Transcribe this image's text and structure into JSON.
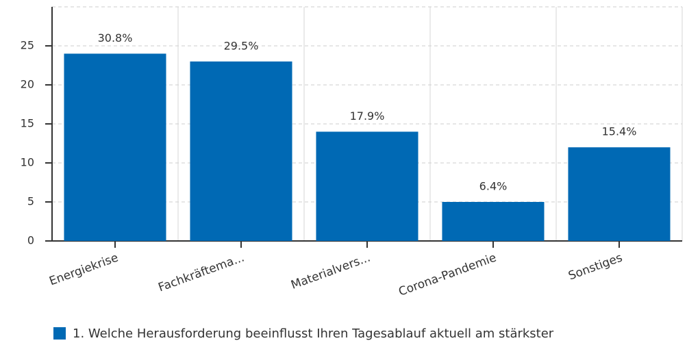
{
  "chart_data": {
    "type": "bar",
    "categories": [
      "Energiekrise",
      "Fachkräftema...",
      "Materialvers...",
      "Corona-Pandemie",
      "Sonstiges"
    ],
    "series": [
      {
        "name": "1. Welche Herausforderung beeinflusst Ihren Tagesablauf aktuell am stärkster",
        "color": "#0069b4",
        "values": [
          24,
          23,
          14,
          5,
          12
        ],
        "value_labels": [
          "30.8%",
          "29.5%",
          "17.9%",
          "6.4%",
          "15.4%"
        ]
      }
    ],
    "ylim": [
      0,
      30
    ],
    "yticks": [
      0,
      5,
      10,
      15,
      20,
      25
    ],
    "grid": true
  }
}
